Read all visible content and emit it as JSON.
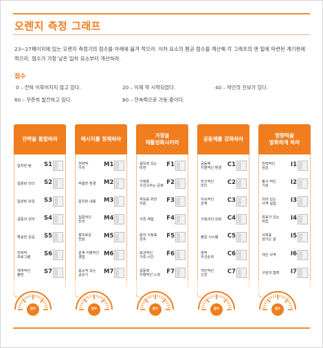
{
  "header": {
    "title": "오렌지 측정 그래프",
    "intro": "23~27페이지에 있는 오렌지 측정기의 점수를 아래에 옮겨 적으라. 이차 요소의 평균 점수를 계산해 각 그래프의 맨 밑에 마련된 계기판에 적으라. 점수가 가장 낮은 일차 요소부터 개선하라."
  },
  "scoring": {
    "heading": "점수",
    "items": [
      "0 – 전혀 이루어지지 않고 있다.",
      "20 – 이제 막 시작되었다.",
      "40 – 약간의 진보가 있다.",
      "60 – 꾸준히 발전하고 있다.",
      "80 – 전속력으로 가동 중이다."
    ]
  },
  "columns": [
    {
      "title": "전략을 통합하라",
      "rows": [
        {
          "label": "일치된 팀",
          "code": "S1"
        },
        {
          "label": "일원된 리더",
          "code": "S2"
        },
        {
          "label": "일관된 모임",
          "code": "S3"
        },
        {
          "label": "공통의 언어",
          "code": "S4"
        },
        {
          "label": "확실한 성공",
          "code": "S5"
        },
        {
          "label": "전략적\n프로그램",
          "code": "S6"
        },
        {
          "label": "계개적인\n출판",
          "code": "S7"
        }
      ],
      "gauge_label": "점수"
    },
    {
      "title": "메시지를 정제하라",
      "rows": [
        {
          "label": "전략적\n가치",
          "code": "M1"
        },
        {
          "label": "적절한 환경",
          "code": "M2"
        },
        {
          "label": "일치된 내용",
          "code": "M3"
        },
        {
          "label": "집중적인\n진리",
          "code": "M4"
        },
        {
          "label": "흥미로운\n전달",
          "code": "M5"
        },
        {
          "label": "관계 지향적인\n경험",
          "code": "M6"
        },
        {
          "label": "효소적 있는\n공유기",
          "code": "M7"
        }
      ],
      "gauge_label": "점수"
    },
    {
      "title": "가정을\n재활성화시키라",
      "rows": [
        {
          "label": "설득력 있는\n비전",
          "code": "F1"
        },
        {
          "label": "가정을\n우선시하는 문화",
          "code": "F2"
        },
        {
          "label": "부모를 위한\n지원",
          "code": "F3"
        },
        {
          "label": "가족 체험",
          "code": "F4"
        },
        {
          "label": "삶의 이정표\n강조",
          "code": "F5"
        },
        {
          "label": "효과적인\n가족 시간",
          "code": "F6"
        },
        {
          "label": "공동체\n지향적인 노력",
          "code": "F7"
        }
      ],
      "gauge_label": "점수"
    },
    {
      "title": "공동체를 강화하라",
      "rows": [
        {
          "label": "공동체\n지향적인 환경",
          "code": "C1"
        },
        {
          "label": "헌신적인\n리더",
          "code": "C2"
        },
        {
          "label": "지속적인\n관계",
          "code": "C3"
        },
        {
          "label": "가정과의 강화",
          "code": "C4"
        },
        {
          "label": "출입 시스템",
          "code": "C5"
        },
        {
          "label": "영적\n우선순위",
          "code": "C6"
        },
        {
          "label": "개인적인\n신앙",
          "code": "C7"
        }
      ],
      "gauge_label": "점수"
    },
    {
      "title": "영향력을\n발휘하게 하라",
      "rows": [
        {
          "label": "전략적인\n섬김",
          "code": "I1"
        },
        {
          "label": "봉사 적인\n기회",
          "code": "I2"
        },
        {
          "label": "의미 있는\n사역 실습",
          "code": "I3"
        },
        {
          "label": "목표가 있는\n학습",
          "code": "I4"
        },
        {
          "label": "사회를\n섬기는 삶",
          "code": "I5"
        },
        {
          "label": "개인 사역",
          "code": "I6"
        },
        {
          "label": "구원과 협력",
          "code": "I7"
        }
      ],
      "gauge_label": "점수"
    }
  ],
  "colors": {
    "accent": "#f07d1e",
    "box": "#f2f2f2"
  }
}
